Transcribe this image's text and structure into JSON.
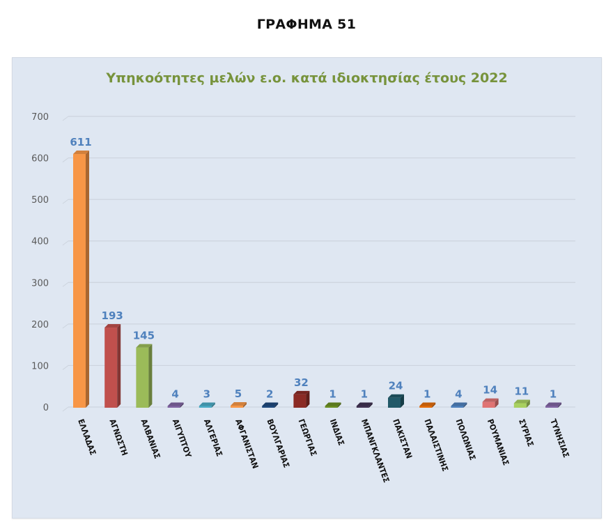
{
  "page": {
    "title": "ΓΡΑΦΗΜΑ 51"
  },
  "chart_data": {
    "type": "bar",
    "title": "Υπηκοότητες μελών ε.ο. κατά ιδιοκτησίας έτους 2022",
    "xlabel": "",
    "ylabel": "",
    "ylim": [
      0,
      700
    ],
    "yticks": [
      0,
      100,
      200,
      300,
      400,
      500,
      600,
      700
    ],
    "grid": true,
    "legend": "none",
    "style": "3d-column",
    "categories": [
      "ΕΛΛΑΔΑΣ",
      "ΑΓΝΩΣΤΗ",
      "ΑΛΒΑΝΙΑΣ",
      "ΑΙΓΥΠΤΟΥ",
      "ΑΛΓΕΡΙΑΣ",
      "ΑΦΓΑΝΙΣΤΑΝ",
      "ΒΟΥΛΓΑΡΙΑΣ",
      "ΓΕΩΡΓΙΑΣ",
      "ΙΝΔΙΑΣ",
      "ΜΠΑΝΓΚΛΑΝΤΕΣ",
      "ΠΑΚΙΣΤΑΝ",
      "ΠΑΛΑΙΣΤΙΝΗΣ",
      "ΠΟΛΩΝΙΑΣ",
      "ΡΟΥΜΑΝΙΑΣ",
      "ΣΥΡΙΑΣ",
      "ΤΥΝΗΣΙΑΣ"
    ],
    "values": [
      611,
      193,
      145,
      4,
      3,
      5,
      2,
      32,
      1,
      1,
      24,
      1,
      4,
      14,
      11,
      1
    ],
    "colors": [
      "#f79646",
      "#c0504d",
      "#9bbb59",
      "#8064a2",
      "#4bacc6",
      "#f79646",
      "#1f497d",
      "#8b2a24",
      "#6b8e23",
      "#403152",
      "#215968",
      "#e46c0a",
      "#4f81bd",
      "#e07373",
      "#a8d060",
      "#8064a2"
    ],
    "data_label_color": "#4f81bd",
    "title_color": "#77933c"
  }
}
